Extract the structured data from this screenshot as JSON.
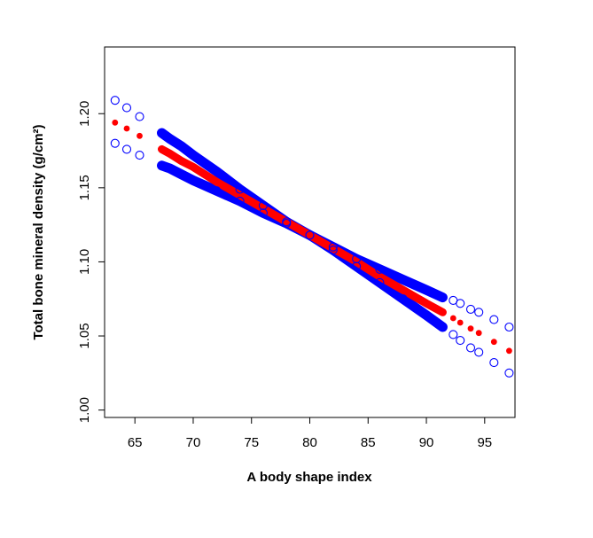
{
  "chart_data": {
    "type": "scatter",
    "title": "",
    "xlabel": "A body shape index",
    "ylabel": "Total bone mineral density (g/cm²)",
    "xlim": [
      62.4,
      97.6
    ],
    "ylim": [
      0.995,
      1.245
    ],
    "x_ticks": [
      65,
      70,
      75,
      80,
      85,
      90,
      95
    ],
    "x_tick_labels": [
      "65",
      "70",
      "75",
      "80",
      "85",
      "90",
      "95"
    ],
    "y_ticks": [
      1.0,
      1.05,
      1.1,
      1.15,
      1.2
    ],
    "y_tick_labels": [
      "1.00",
      "1.05",
      "1.10",
      "1.15",
      "1.20"
    ],
    "grid": false,
    "legend": "none",
    "colors": {
      "fit": "#ff0000",
      "ci": "#0000ff",
      "axis": "#000000"
    },
    "series": [
      {
        "role": "fit",
        "marker": "filled-circle",
        "points": [
          [
            63.3,
            1.194
          ],
          [
            64.3,
            1.19
          ],
          [
            65.4,
            1.185
          ],
          [
            67.3,
            1.176
          ],
          [
            68,
            1.173
          ],
          [
            69,
            1.168
          ],
          [
            70,
            1.164
          ],
          [
            72,
            1.154
          ],
          [
            74,
            1.145
          ],
          [
            76,
            1.136
          ],
          [
            78,
            1.127
          ],
          [
            80,
            1.118
          ],
          [
            82,
            1.109
          ],
          [
            84,
            1.1
          ],
          [
            86,
            1.09
          ],
          [
            88,
            1.081
          ],
          [
            90,
            1.072
          ],
          [
            91.4,
            1.066
          ],
          [
            92.3,
            1.062
          ],
          [
            92.9,
            1.059
          ],
          [
            93.8,
            1.055
          ],
          [
            94.5,
            1.052
          ],
          [
            95.8,
            1.046
          ],
          [
            97.1,
            1.04
          ]
        ]
      },
      {
        "role": "upper-ci",
        "marker": "open-circle",
        "points": [
          [
            63.3,
            1.209
          ],
          [
            64.3,
            1.204
          ],
          [
            65.4,
            1.198
          ],
          [
            67.3,
            1.187
          ],
          [
            68,
            1.183
          ],
          [
            69,
            1.178
          ],
          [
            70,
            1.172
          ],
          [
            72,
            1.161
          ],
          [
            74,
            1.149
          ],
          [
            76,
            1.138
          ],
          [
            78,
            1.127
          ],
          [
            80,
            1.118
          ],
          [
            82,
            1.11
          ],
          [
            84,
            1.102
          ],
          [
            86,
            1.095
          ],
          [
            88,
            1.088
          ],
          [
            90,
            1.081
          ],
          [
            91.4,
            1.076
          ],
          [
            92.3,
            1.074
          ],
          [
            92.9,
            1.072
          ],
          [
            93.8,
            1.068
          ],
          [
            94.5,
            1.066
          ],
          [
            95.8,
            1.061
          ],
          [
            97.1,
            1.056
          ]
        ]
      },
      {
        "role": "lower-ci",
        "marker": "open-circle",
        "points": [
          [
            63.3,
            1.18
          ],
          [
            64.3,
            1.176
          ],
          [
            65.4,
            1.172
          ],
          [
            67.3,
            1.165
          ],
          [
            68,
            1.163
          ],
          [
            69,
            1.159
          ],
          [
            70,
            1.155
          ],
          [
            72,
            1.148
          ],
          [
            74,
            1.141
          ],
          [
            76,
            1.133
          ],
          [
            78,
            1.126
          ],
          [
            80,
            1.118
          ],
          [
            82,
            1.108
          ],
          [
            84,
            1.097
          ],
          [
            86,
            1.086
          ],
          [
            88,
            1.075
          ],
          [
            90,
            1.064
          ],
          [
            91.4,
            1.056
          ],
          [
            92.3,
            1.051
          ],
          [
            92.9,
            1.047
          ],
          [
            93.8,
            1.042
          ],
          [
            94.5,
            1.039
          ],
          [
            95.8,
            1.032
          ],
          [
            97.1,
            1.025
          ]
        ]
      }
    ]
  }
}
